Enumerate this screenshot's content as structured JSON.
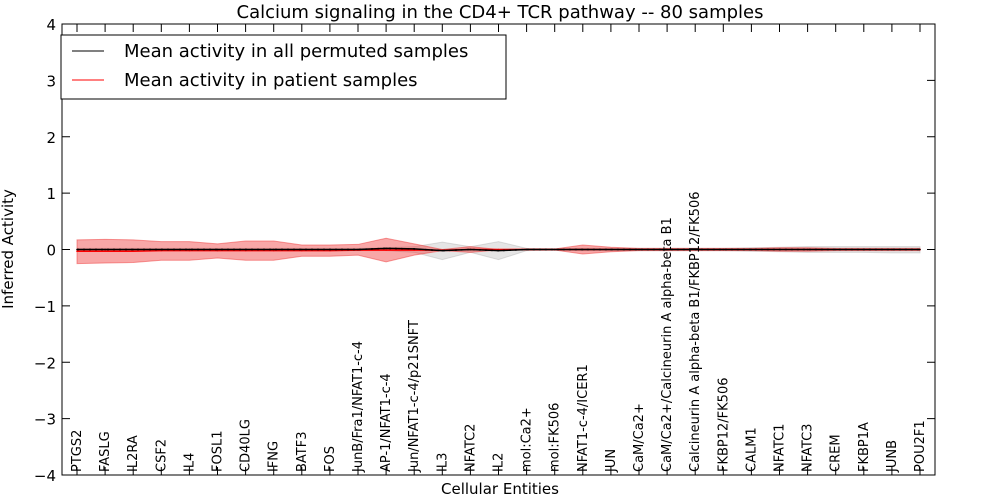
{
  "chart_data": {
    "type": "line",
    "title": "Calcium signaling in the CD4+ TCR pathway -- 80 samples",
    "xlabel": "Cellular Entities",
    "ylabel": "Inferred Activity",
    "ylim": [
      -4,
      4
    ],
    "yticks": [
      -4,
      -3,
      -2,
      -1,
      0,
      1,
      2,
      3,
      4
    ],
    "ytick_labels": [
      "−4",
      "−3",
      "−2",
      "−1",
      "0",
      "1",
      "2",
      "3",
      "4"
    ],
    "legend_position": "top-left",
    "categories": [
      "PTGS2",
      "FASLG",
      "IL2RA",
      "CSF2",
      "IL4",
      "FOSL1",
      "CD40LG",
      "IFNG",
      "BATF3",
      "FOS",
      "JunB/Fra1/NFAT1-c-4",
      "AP-1/NFAT1-c-4",
      "Jun/NFAT1-c-4/p21SNFT",
      "IL3",
      "NFATC2",
      "IL2",
      "mol:Ca2+",
      "mol:FK506",
      "NFAT1-c-4/ICER1",
      "JUN",
      "CaM/Ca2+",
      "CaM/Ca2+/Calcineurin A alpha-beta B1",
      "Calcineurin A alpha-beta B1/FKBP12/FK506",
      "FKBP12/FK506",
      "CALM1",
      "NFATC1",
      "NFATC3",
      "CREM",
      "FKBP1A",
      "JUNB",
      "POU2F1"
    ],
    "series": [
      {
        "name": "Mean activity in all permuted samples",
        "color": "#000000",
        "values": [
          0,
          0,
          0,
          0,
          0,
          0,
          0,
          0,
          0,
          0,
          0,
          0.02,
          0.01,
          -0.02,
          0,
          -0.02,
          0,
          0,
          0,
          0,
          0,
          0,
          0,
          0,
          0,
          0,
          0,
          0,
          0,
          0,
          0
        ],
        "band_upper": [
          0.02,
          0.02,
          0.02,
          0.02,
          0.02,
          0.02,
          0.02,
          0.02,
          0.02,
          0.02,
          0.02,
          0.03,
          0.05,
          0.13,
          0.05,
          0.14,
          0.02,
          0.01,
          0.02,
          0.02,
          0.02,
          0.02,
          0.02,
          0.02,
          0.03,
          0.04,
          0.05,
          0.05,
          0.05,
          0.05,
          0.05
        ],
        "band_lower": [
          -0.02,
          -0.02,
          -0.02,
          -0.02,
          -0.02,
          -0.02,
          -0.02,
          -0.02,
          -0.02,
          -0.02,
          -0.02,
          -0.02,
          -0.05,
          -0.18,
          -0.05,
          -0.18,
          -0.02,
          -0.01,
          -0.02,
          -0.02,
          -0.02,
          -0.02,
          -0.02,
          -0.02,
          -0.03,
          -0.04,
          -0.05,
          -0.05,
          -0.05,
          -0.06,
          -0.06
        ]
      },
      {
        "name": "Mean activity in patient samples",
        "color": "#ff0000",
        "values": [
          -0.03,
          -0.03,
          -0.03,
          -0.02,
          -0.02,
          -0.02,
          -0.02,
          -0.02,
          -0.02,
          -0.02,
          -0.01,
          -0.01,
          -0.01,
          -0.01,
          0,
          0,
          0,
          0,
          0,
          0,
          0,
          0,
          0,
          0,
          0,
          0,
          0,
          0,
          0,
          0,
          0
        ],
        "band_upper": [
          0.17,
          0.18,
          0.17,
          0.14,
          0.14,
          0.1,
          0.15,
          0.15,
          0.08,
          0.08,
          0.09,
          0.2,
          0.1,
          0.0,
          0.05,
          0.0,
          0.01,
          0.01,
          0.08,
          0.04,
          0.02,
          0.02,
          0.02,
          0.02,
          0.02,
          0.03,
          0.03,
          0.02,
          0.02,
          0.02,
          0.02
        ],
        "band_lower": [
          -0.25,
          -0.24,
          -0.23,
          -0.19,
          -0.19,
          -0.15,
          -0.19,
          -0.19,
          -0.12,
          -0.12,
          -0.1,
          -0.22,
          -0.1,
          -0.02,
          -0.05,
          -0.01,
          -0.01,
          -0.01,
          -0.08,
          -0.04,
          -0.02,
          -0.02,
          -0.02,
          -0.02,
          -0.02,
          -0.03,
          -0.03,
          -0.02,
          -0.02,
          -0.02,
          -0.02
        ]
      }
    ]
  }
}
